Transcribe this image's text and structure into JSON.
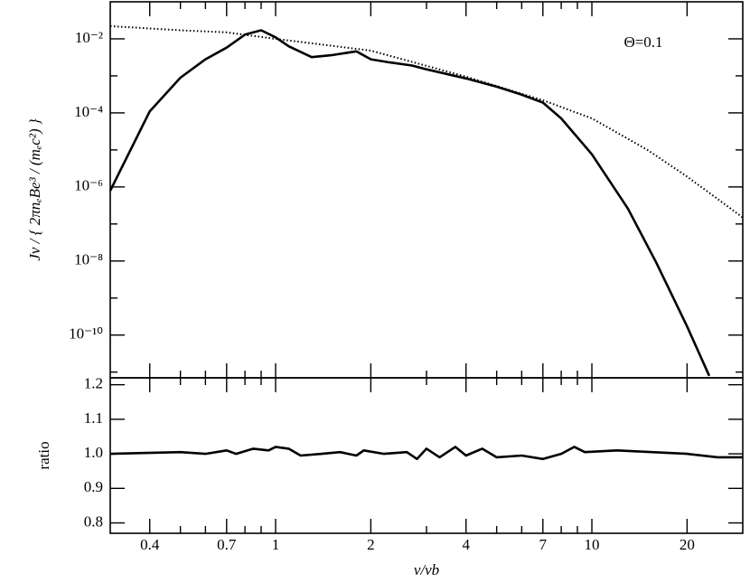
{
  "chart_data": [
    {
      "type": "line",
      "xlog": true,
      "ylog": true,
      "ylabel": "Jν / { 2πnₑBe³ / (mₑc²) }",
      "annotation": "Θ=0.1",
      "xlim": [
        0.3,
        30
      ],
      "xticks": [
        0.4,
        0.7,
        1,
        2,
        4,
        7,
        10,
        20
      ],
      "xminorticks": [
        0.5,
        0.6,
        0.8,
        0.9,
        3,
        5,
        6,
        8,
        9
      ],
      "ylim": [
        7e-12,
        0.1
      ],
      "yticks": [
        {
          "value": 0.01,
          "label": "10⁻²"
        },
        {
          "value": 0.0001,
          "label": "10⁻⁴"
        },
        {
          "value": 1e-06,
          "label": "10⁻⁶"
        },
        {
          "value": 1e-08,
          "label": "10⁻⁸"
        },
        {
          "value": 1e-10,
          "label": "10⁻¹⁰"
        }
      ],
      "yminorticks": [
        0.001,
        1e-05,
        1e-07,
        1e-09,
        1e-11
      ],
      "series": [
        {
          "color": "#000000",
          "style": "solid",
          "x": [
            0.3,
            0.4,
            0.5,
            0.6,
            0.7,
            0.8,
            0.9,
            1.0,
            1.1,
            1.3,
            1.5,
            1.8,
            2.0,
            2.3,
            2.7,
            3,
            4,
            5,
            6,
            7,
            8,
            10,
            13,
            16,
            20,
            23.5
          ],
          "values": [
            7.9e-07,
            0.00011,
            0.00089,
            0.0028,
            0.0058,
            0.013,
            0.017,
            0.011,
            0.0063,
            0.0032,
            0.0036,
            0.0046,
            0.0028,
            0.0023,
            0.0019,
            0.0015,
            0.00085,
            0.00051,
            0.00031,
            0.00019,
            7.1e-05,
            7.6e-06,
            2.6e-07,
            8.9e-09,
            1.7e-10,
            7.9e-12
          ]
        },
        {
          "color": "#000000",
          "style": "dotted",
          "x": [
            0.3,
            0.5,
            0.7,
            1,
            2,
            4,
            7,
            10,
            15,
            20,
            30
          ],
          "values": [
            0.022,
            0.017,
            0.015,
            0.01,
            0.0048,
            0.00095,
            0.00022,
            7.1e-05,
            1e-05,
            1.9e-06,
            1.5e-07
          ]
        }
      ]
    },
    {
      "type": "line",
      "xlog": true,
      "ylog": false,
      "xlabel": "ν/νb",
      "ylabel": "ratio",
      "xlim": [
        0.3,
        30
      ],
      "xticks": [
        0.4,
        0.7,
        1,
        2,
        4,
        7,
        10,
        20
      ],
      "xminorticks": [
        0.5,
        0.6,
        0.8,
        0.9,
        3,
        5,
        6,
        8,
        9
      ],
      "ylim": [
        0.77,
        1.22
      ],
      "yticks": [
        0.8,
        0.9,
        {
          "value": 1,
          "label": "1.0"
        },
        1.1,
        1.2
      ],
      "series": [
        {
          "color": "#000000",
          "style": "solid",
          "x": [
            0.3,
            0.5,
            0.6,
            0.7,
            0.75,
            0.85,
            0.95,
            1.0,
            1.1,
            1.2,
            1.4,
            1.6,
            1.8,
            1.9,
            2.2,
            2.6,
            2.8,
            3.0,
            3.3,
            3.7,
            4.0,
            4.5,
            5.0,
            6,
            7,
            8,
            8.8,
            9.5,
            12,
            20,
            25,
            30
          ],
          "values": [
            1.0,
            1.005,
            1.0,
            1.01,
            1.0,
            1.015,
            1.01,
            1.02,
            1.015,
            0.995,
            1.0,
            1.005,
            0.995,
            1.01,
            1.0,
            1.005,
            0.985,
            1.015,
            0.99,
            1.02,
            0.995,
            1.015,
            0.99,
            0.995,
            0.985,
            1.0,
            1.02,
            1.005,
            1.01,
            1.0,
            0.99,
            0.99
          ]
        }
      ]
    }
  ]
}
